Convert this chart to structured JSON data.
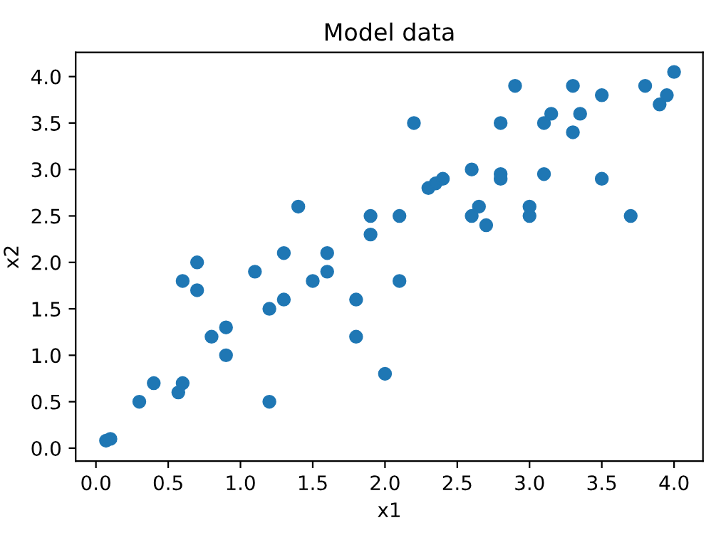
{
  "chart_data": {
    "type": "scatter",
    "title": "Model data",
    "xlabel": "x1",
    "ylabel": "x2",
    "xlim": [
      -0.14,
      4.2
    ],
    "ylim": [
      -0.14,
      4.26
    ],
    "xticks": [
      {
        "value": 0,
        "label": "0.0"
      },
      {
        "value": 0.5,
        "label": "0.5"
      },
      {
        "value": 1,
        "label": "1.0"
      },
      {
        "value": 1.5,
        "label": "1.5"
      },
      {
        "value": 2,
        "label": "2.0"
      },
      {
        "value": 2.5,
        "label": "2.5"
      },
      {
        "value": 3,
        "label": "3.0"
      },
      {
        "value": 3.5,
        "label": "3.5"
      },
      {
        "value": 4,
        "label": "4.0"
      }
    ],
    "yticks": [
      {
        "value": 0,
        "label": "0.0"
      },
      {
        "value": 0.5,
        "label": "0.5"
      },
      {
        "value": 1,
        "label": "1.0"
      },
      {
        "value": 1.5,
        "label": "1.5"
      },
      {
        "value": 2,
        "label": "2.0"
      },
      {
        "value": 2.5,
        "label": "2.5"
      },
      {
        "value": 3,
        "label": "3.0"
      },
      {
        "value": 3.5,
        "label": "3.5"
      },
      {
        "value": 4,
        "label": "4.0"
      }
    ],
    "marker": "circle",
    "grid": false,
    "legend": false,
    "series": [
      {
        "color": "#1f77b4",
        "x": [
          0.07,
          0.1,
          0.3,
          0.4,
          0.57,
          0.6,
          0.6,
          0.7,
          0.7,
          0.8,
          0.9,
          0.9,
          1.1,
          1.2,
          1.2,
          1.3,
          1.3,
          1.4,
          1.5,
          1.6,
          1.6,
          1.8,
          1.8,
          1.9,
          1.9,
          2.0,
          2.1,
          2.1,
          2.2,
          2.3,
          2.35,
          2.4,
          2.6,
          2.6,
          2.65,
          2.7,
          2.8,
          2.8,
          2.8,
          2.9,
          3.0,
          3.0,
          3.1,
          3.15,
          3.1,
          3.3,
          3.3,
          3.35,
          3.5,
          3.5,
          3.7,
          3.8,
          3.9,
          3.95,
          4.0
        ],
        "values": [
          0.08,
          0.1,
          0.5,
          0.7,
          0.6,
          0.7,
          1.8,
          2.0,
          1.7,
          1.2,
          1.3,
          1.0,
          1.9,
          1.5,
          0.5,
          2.1,
          1.6,
          2.6,
          1.8,
          2.1,
          1.9,
          1.6,
          1.2,
          2.5,
          2.3,
          0.8,
          2.5,
          1.8,
          3.5,
          2.8,
          2.85,
          2.9,
          3.0,
          2.5,
          2.6,
          2.4,
          3.5,
          2.95,
          2.9,
          3.9,
          2.6,
          2.5,
          3.5,
          3.6,
          2.95,
          3.9,
          3.4,
          3.6,
          3.8,
          2.9,
          2.5,
          3.9,
          3.7,
          3.8,
          4.05
        ]
      }
    ]
  }
}
